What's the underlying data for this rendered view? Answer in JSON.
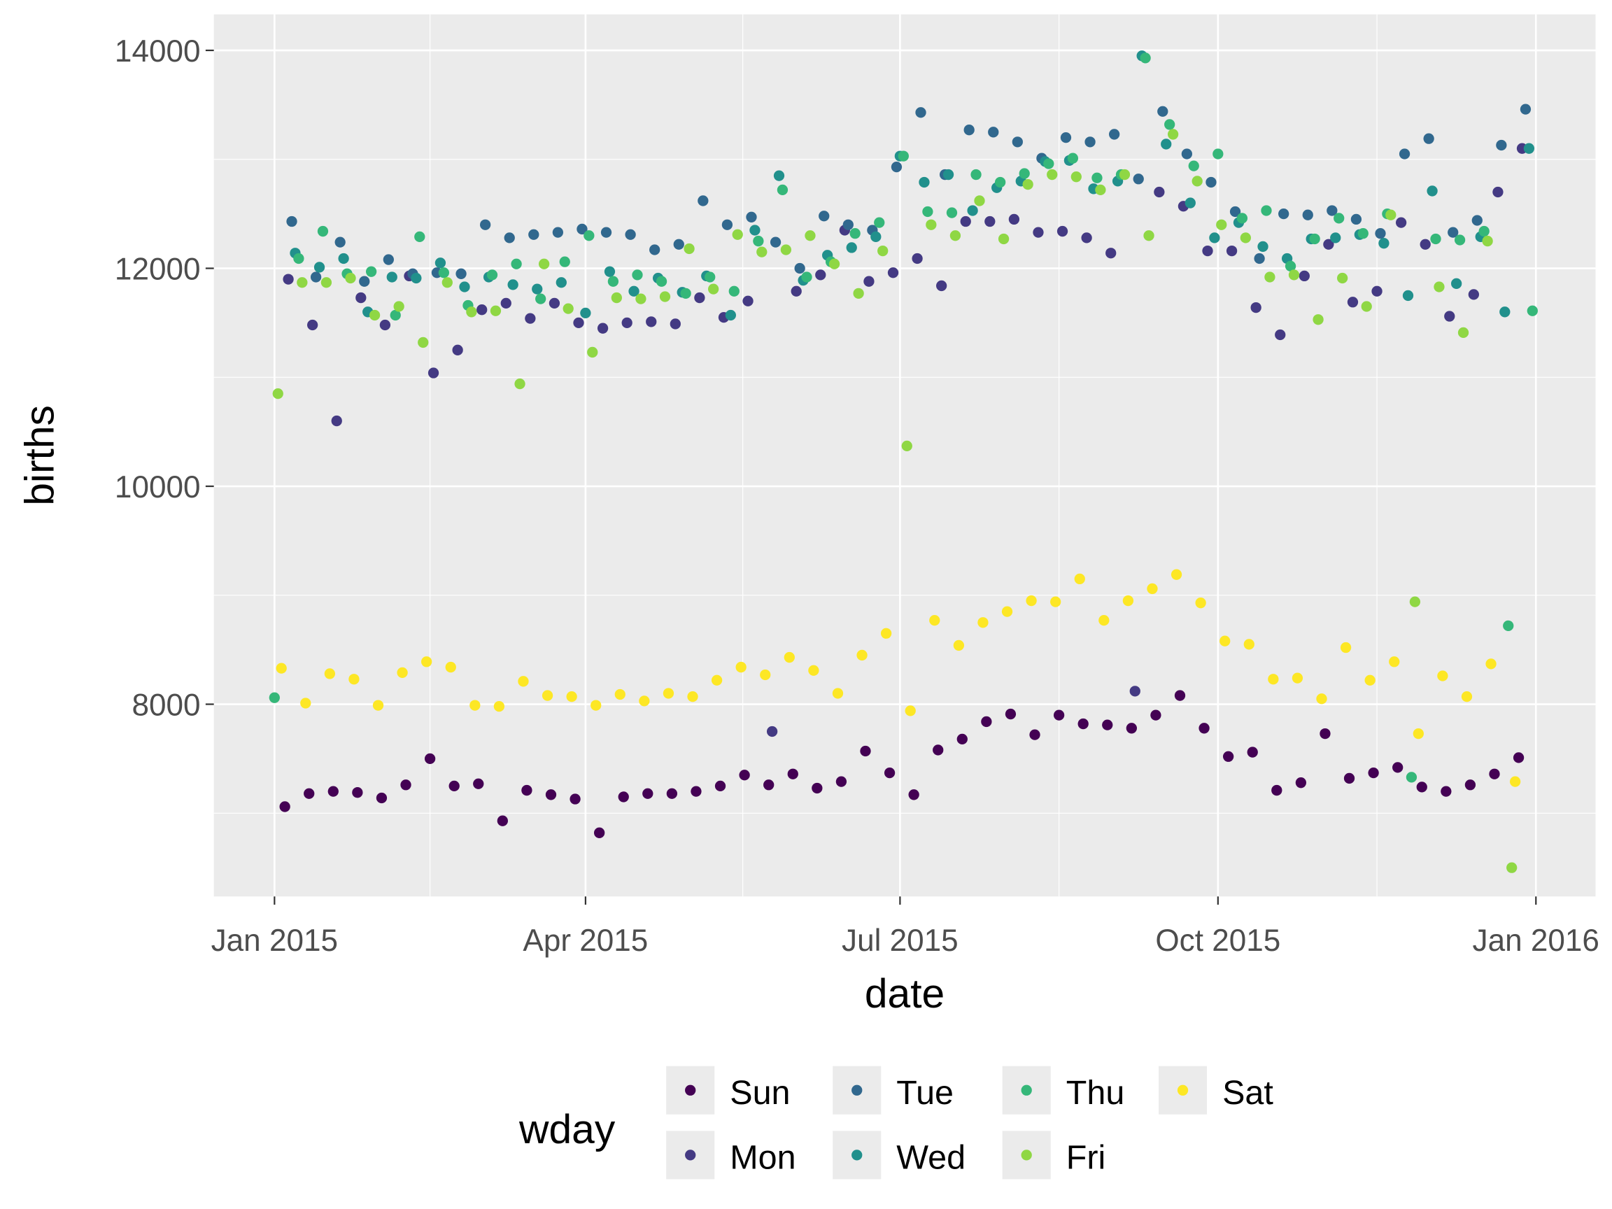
{
  "chart_data": {
    "type": "scatter",
    "title": "",
    "xlabel": "date",
    "ylabel": "births",
    "x_range": [
      "2014-12-20",
      "2016-01-12"
    ],
    "ylim": [
      6300,
      14350
    ],
    "grid": true,
    "x_ticks": [
      {
        "date": "2015-01-01",
        "label": "Jan 2015"
      },
      {
        "date": "2015-04-01",
        "label": "Apr 2015"
      },
      {
        "date": "2015-07-01",
        "label": "Jul 2015"
      },
      {
        "date": "2015-10-01",
        "label": "Oct 2015"
      },
      {
        "date": "2016-01-01",
        "label": "Jan 2016"
      }
    ],
    "y_ticks": [
      8000,
      10000,
      12000,
      14000
    ],
    "legend": {
      "title": "wday",
      "placement": "bottom",
      "entries": [
        "Sun",
        "Mon",
        "Tue",
        "Wed",
        "Thu",
        "Fri",
        "Sat"
      ]
    },
    "series": [
      {
        "name": "Sun",
        "color": "#440154",
        "start": "2015-01-04",
        "step_days": 7,
        "values": [
          7060,
          7180,
          7200,
          7190,
          7140,
          7260,
          7500,
          7250,
          7270,
          6930,
          7210,
          7170,
          7130,
          6820,
          7150,
          7180,
          7180,
          7200,
          7250,
          7350,
          7260,
          7360,
          7230,
          7290,
          7570,
          7370,
          7170,
          7580,
          7680,
          7840,
          7910,
          7720,
          7900,
          7820,
          7810,
          7780,
          7900,
          8080,
          7780,
          7520,
          7560,
          7210,
          7280,
          7730,
          7320,
          7370,
          7420,
          7240,
          7200,
          7260,
          7360,
          7510
        ]
      },
      {
        "name": "Mon",
        "color": "#443A83",
        "start": "2015-01-05",
        "step_days": 7,
        "values": [
          11900,
          11480,
          10600,
          11730,
          11480,
          11930,
          11040,
          11250,
          11620,
          11680,
          11540,
          11680,
          11500,
          11450,
          11500,
          11510,
          11490,
          11730,
          11550,
          11700,
          7750,
          11790,
          11940,
          12350,
          11880,
          11960,
          12090,
          11840,
          12430,
          12430,
          12450,
          12330,
          12340,
          12280,
          12140,
          8120,
          12700,
          12570,
          12160,
          12160,
          11640,
          11390,
          11930,
          12220,
          11690,
          11790,
          12420,
          12220,
          11560,
          11760,
          12700,
          13100
        ]
      },
      {
        "name": "Tue",
        "color": "#31688E",
        "start": "2015-01-06",
        "step_days": 7,
        "values": [
          12430,
          11920,
          12240,
          11880,
          12080,
          11950,
          11960,
          11950,
          12400,
          12280,
          12310,
          12330,
          12360,
          12330,
          12310,
          12170,
          12220,
          12620,
          12400,
          12470,
          12240,
          12000,
          12480,
          12400,
          12350,
          12930,
          13430,
          12860,
          13270,
          13250,
          13160,
          13010,
          13200,
          13160,
          13230,
          12820,
          13440,
          13050,
          12790,
          12520,
          12090,
          12500,
          12490,
          12530,
          12450,
          12320,
          13050,
          13190,
          12330,
          12440,
          13130,
          13460
        ]
      },
      {
        "name": "Wed",
        "color": "#21908C",
        "start": "2015-01-07",
        "step_days": 7,
        "values": [
          12140,
          12010,
          12090,
          11600,
          11920,
          11910,
          12050,
          11830,
          11920,
          11850,
          11810,
          11870,
          11590,
          11970,
          11790,
          11910,
          11780,
          11930,
          11570,
          12350,
          12850,
          11890,
          12120,
          12190,
          12290,
          13030,
          12790,
          12860,
          12530,
          12740,
          12800,
          12980,
          12990,
          12730,
          12800,
          13950,
          13140,
          12600,
          12280,
          12420,
          12200,
          12090,
          12270,
          12280,
          12310,
          12230,
          11750,
          12710,
          11860,
          12290,
          11600,
          13100
        ]
      },
      {
        "name": "Thu",
        "color": "#35B779",
        "start": "2015-01-01",
        "step_days": 7,
        "values": [
          8060,
          12090,
          12340,
          11950,
          11970,
          11570,
          12290,
          11960,
          11660,
          11940,
          12040,
          11720,
          12060,
          12300,
          11880,
          11940,
          11880,
          11770,
          11920,
          11790,
          12250,
          12720,
          11920,
          12060,
          12320,
          12420,
          13030,
          12520,
          12510,
          12860,
          12790,
          12870,
          12960,
          13010,
          12830,
          12860,
          13930,
          13320,
          12940,
          13050,
          12460,
          12530,
          12020,
          12270,
          12460,
          12320,
          12500,
          7330,
          12270,
          12260,
          12340,
          8720,
          11610
        ]
      },
      {
        "name": "Fri",
        "color": "#8FD744",
        "start": "2015-01-02",
        "step_days": 7,
        "values": [
          10850,
          11870,
          11870,
          11910,
          11570,
          11650,
          11320,
          11870,
          11600,
          11610,
          10940,
          12040,
          11630,
          11230,
          11730,
          11720,
          11740,
          12180,
          11810,
          12310,
          12150,
          12170,
          12300,
          12040,
          11770,
          12160,
          10370,
          12400,
          12300,
          12620,
          12270,
          12770,
          12860,
          12840,
          12720,
          12860,
          12300,
          13230,
          12800,
          12400,
          12280,
          11920,
          11940,
          11530,
          11910,
          11650,
          12490,
          8940,
          11830,
          11410,
          12250,
          6500
        ]
      },
      {
        "name": "Sat",
        "color": "#FDE725",
        "start": "2015-01-03",
        "step_days": 7,
        "values": [
          8330,
          8010,
          8280,
          8230,
          7990,
          8290,
          8390,
          8340,
          7990,
          7980,
          8210,
          8080,
          8070,
          7990,
          8090,
          8030,
          8100,
          8070,
          8220,
          8340,
          8270,
          8430,
          8310,
          8100,
          8450,
          8650,
          7940,
          8770,
          8540,
          8750,
          8850,
          8950,
          8940,
          9150,
          8770,
          8950,
          9060,
          9190,
          8930,
          8580,
          8550,
          8230,
          8240,
          8050,
          8520,
          8220,
          8390,
          7730,
          8260,
          8070,
          8370,
          7290
        ]
      }
    ]
  }
}
